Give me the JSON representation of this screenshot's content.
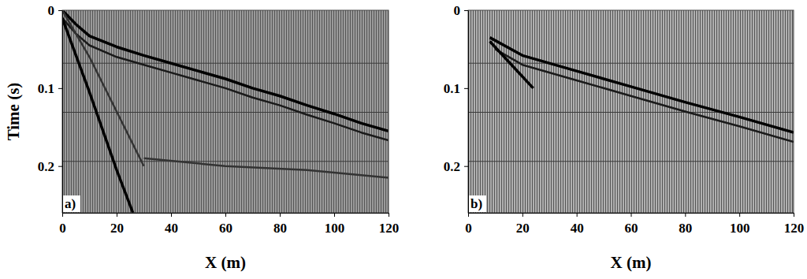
{
  "chart_data": [
    {
      "type": "line",
      "panel_label": "a)",
      "x_label": "X (m)",
      "y_label": "Time (s)",
      "xlim": [
        0,
        120
      ],
      "ylim": [
        0,
        0.26
      ],
      "xticks": [
        0,
        20,
        40,
        60,
        80,
        100,
        120
      ],
      "yticks": [
        0,
        0.1,
        0.2
      ],
      "reference_lines": [
        0.068,
        0.131,
        0.194
      ],
      "series": [
        {
          "color": "#000000",
          "x": [
            0,
            5,
            10,
            20,
            30,
            40,
            50,
            60,
            70,
            80,
            90,
            100,
            110,
            120
          ],
          "values": [
            0,
            0.018,
            0.033,
            0.047,
            0.058,
            0.068,
            0.078,
            0.088,
            0.1,
            0.11,
            0.122,
            0.133,
            0.145,
            0.155
          ]
        },
        {
          "color": "#1a1a1a",
          "x": [
            0,
            5,
            10,
            20,
            30,
            40,
            50,
            60,
            70,
            80,
            90,
            100,
            110,
            120
          ],
          "values": [
            0.01,
            0.03,
            0.045,
            0.06,
            0.07,
            0.08,
            0.09,
            0.1,
            0.112,
            0.122,
            0.134,
            0.145,
            0.157,
            0.167
          ]
        },
        {
          "color": "#000000",
          "x": [
            0,
            10,
            20,
            26
          ],
          "values": [
            0.01,
            0.105,
            0.205,
            0.26
          ]
        },
        {
          "color": "#333333",
          "x": [
            0,
            10,
            20,
            30
          ],
          "values": [
            0,
            0.06,
            0.13,
            0.2
          ]
        },
        {
          "color": "#333333",
          "x": [
            30,
            60,
            90,
            120
          ],
          "values": [
            0.19,
            0.2,
            0.205,
            0.215
          ]
        }
      ]
    },
    {
      "type": "line",
      "panel_label": "b)",
      "x_label": "X (m)",
      "xlim": [
        0,
        120
      ],
      "ylim": [
        0,
        0.26
      ],
      "xticks": [
        0,
        20,
        40,
        60,
        80,
        100,
        120
      ],
      "yticks": [
        0,
        0.1,
        0.2
      ],
      "reference_lines": [
        0.068,
        0.131,
        0.194
      ],
      "series": [
        {
          "color": "#000000",
          "x": [
            8,
            20,
            40,
            60,
            80,
            100,
            120
          ],
          "values": [
            0.035,
            0.058,
            0.078,
            0.098,
            0.118,
            0.137,
            0.157
          ]
        },
        {
          "color": "#1a1a1a",
          "x": [
            10,
            20,
            40,
            60,
            80,
            100,
            120
          ],
          "values": [
            0.05,
            0.07,
            0.09,
            0.11,
            0.13,
            0.149,
            0.169
          ]
        },
        {
          "color": "#000000",
          "x": [
            8,
            16,
            24
          ],
          "values": [
            0.04,
            0.07,
            0.1
          ]
        }
      ]
    }
  ]
}
